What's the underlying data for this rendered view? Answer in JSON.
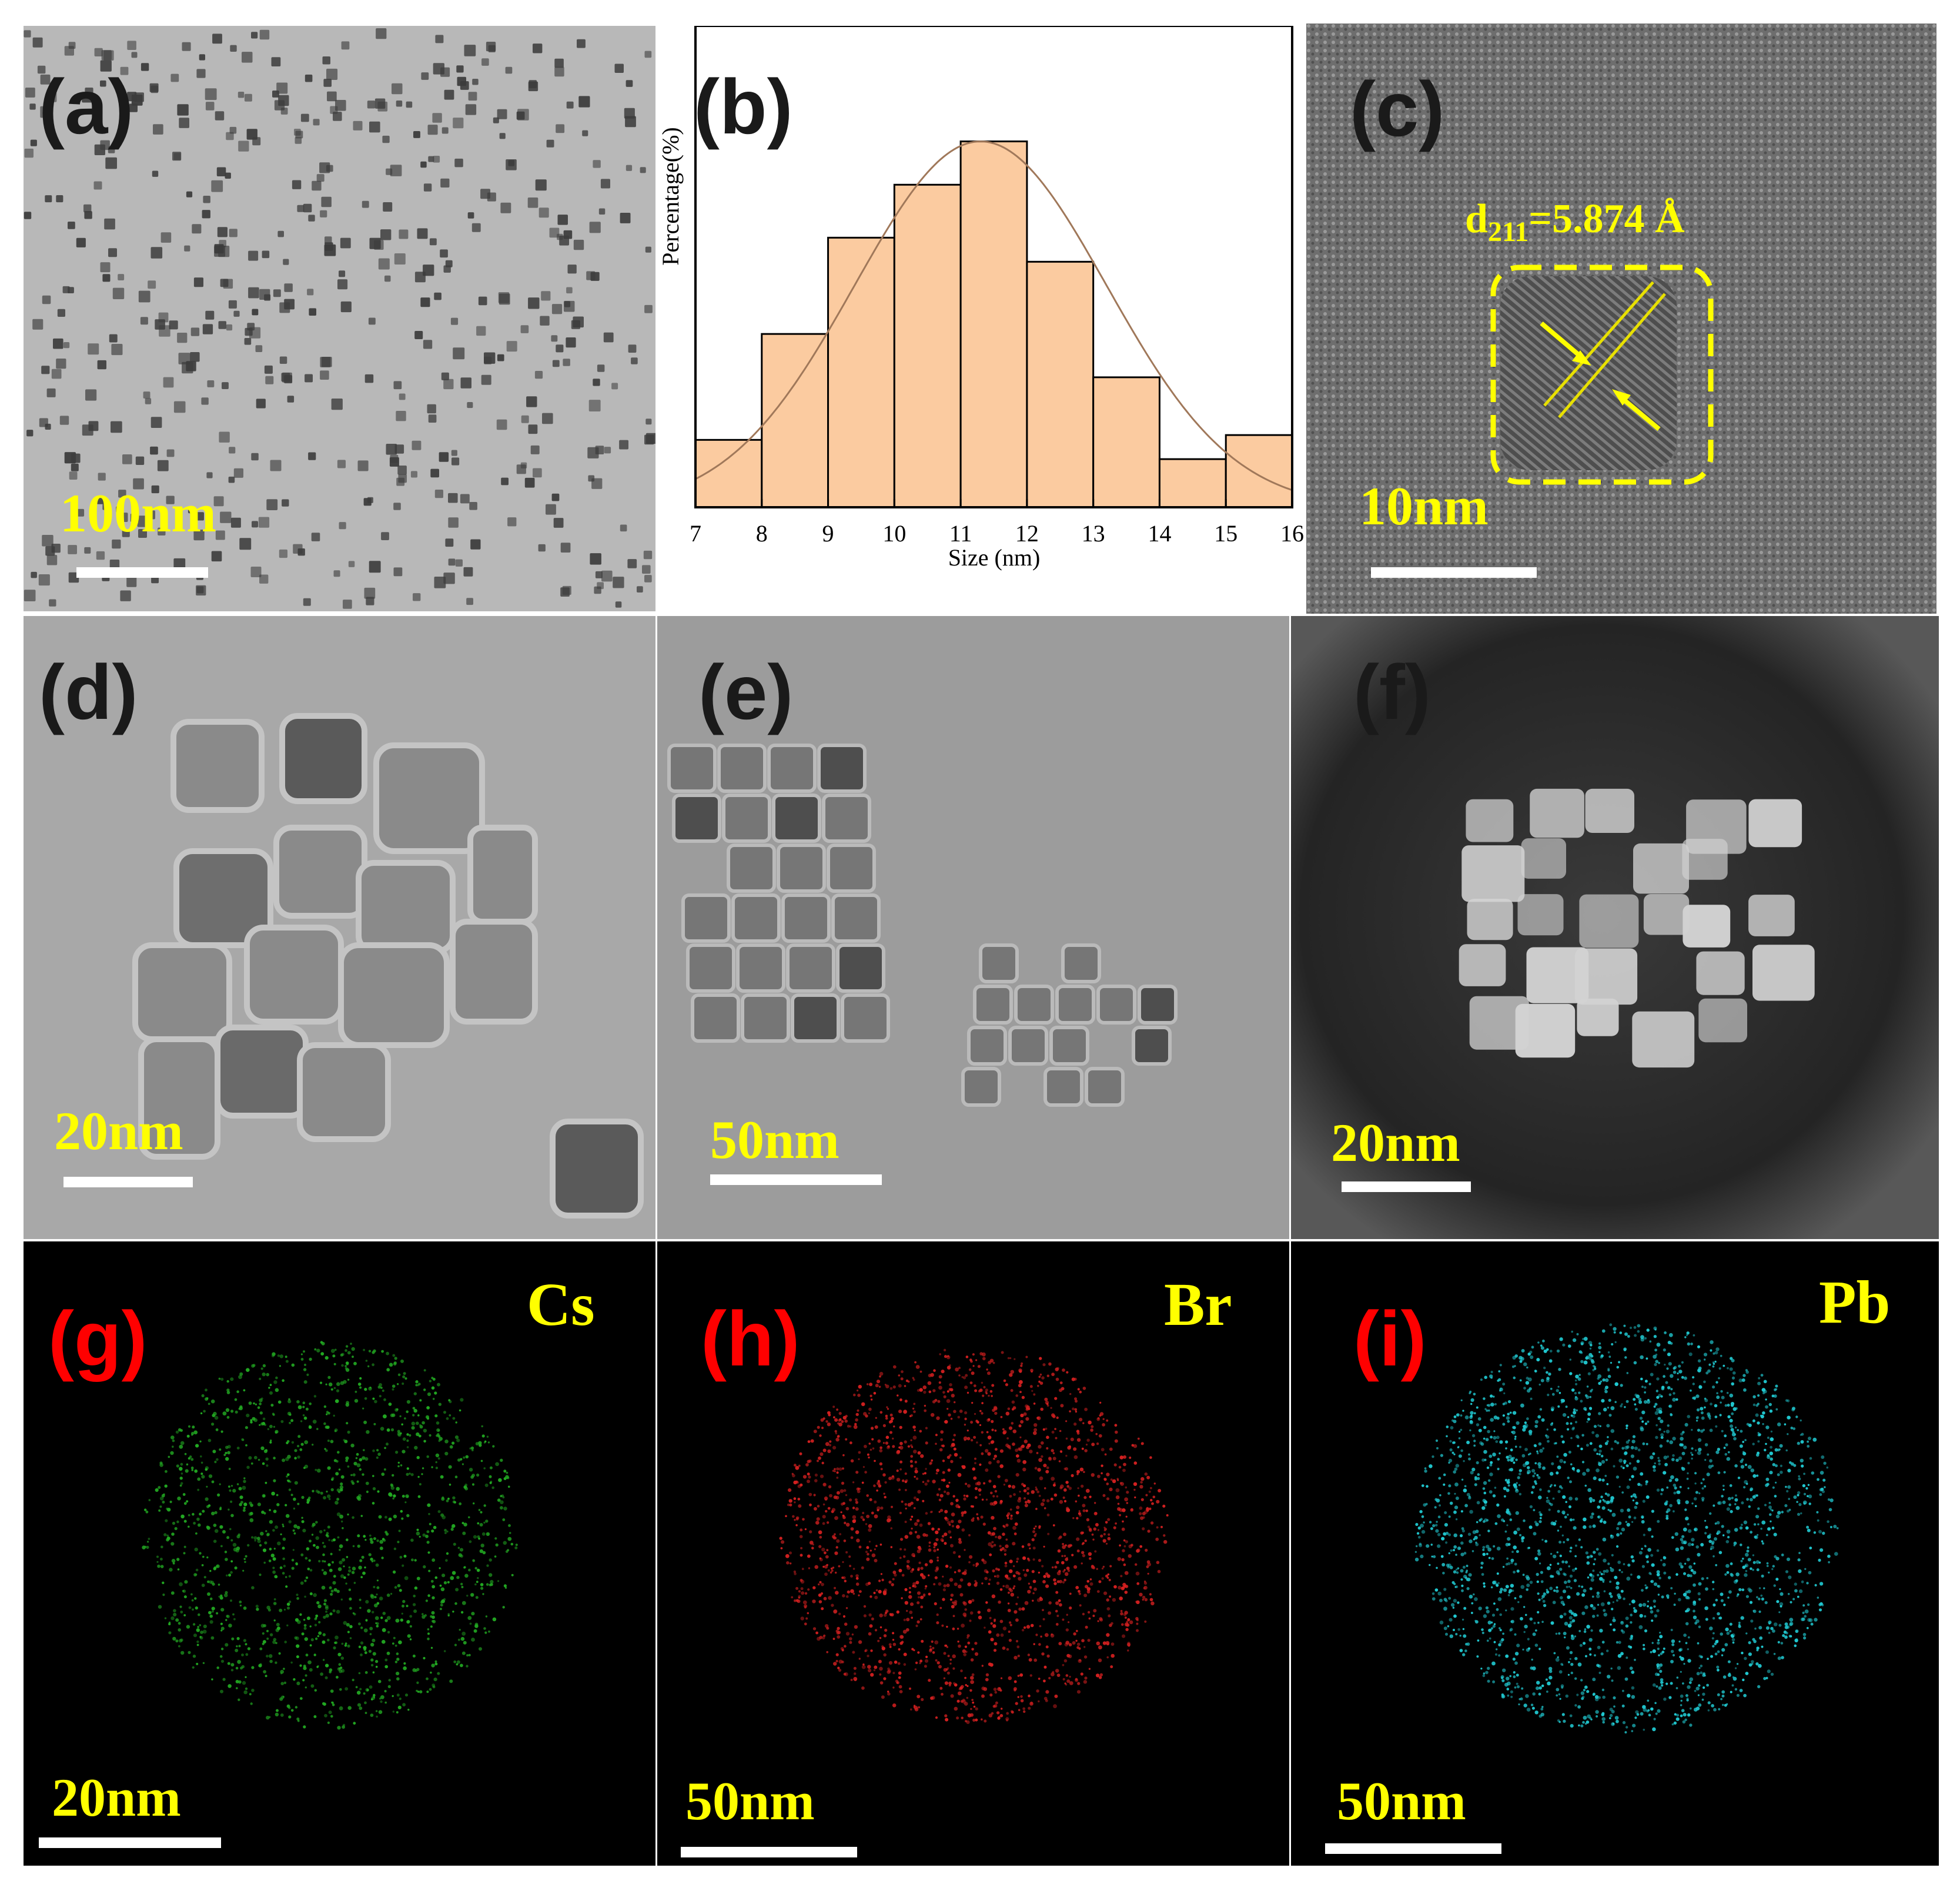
{
  "panels": {
    "a": {
      "label": "(a)",
      "scale": "100nm"
    },
    "b": {
      "label": "(b)"
    },
    "c": {
      "label": "(c)",
      "scale": "10nm",
      "d_spacing": {
        "symbol": "d",
        "index": "211",
        "value": "=5.874 Å"
      }
    },
    "d": {
      "label": "(d)",
      "scale": "20nm"
    },
    "e": {
      "label": "(e)",
      "scale": "50nm"
    },
    "f": {
      "label": "(f)",
      "scale": "20nm"
    },
    "g": {
      "label": "(g)",
      "element": "Cs",
      "scale": "20nm"
    },
    "h": {
      "label": "(h)",
      "element": "Br",
      "scale": "50nm"
    },
    "i": {
      "label": "(i)",
      "element": "Pb",
      "scale": "50nm"
    }
  },
  "colors": {
    "panel_label_dark": "#1a1a1a",
    "panel_label_red": "#ff0000",
    "annotation_yellow": "#ffff00",
    "hist_fill": "#fbcba0",
    "hist_edge": "#000000",
    "fit_curve": "#a0785a",
    "map_cs": "#22aa22",
    "map_br": "#d42020",
    "map_pb": "#20c8d0"
  },
  "chart_data": {
    "type": "bar",
    "title": "",
    "xlabel": "Size (nm)",
    "ylabel": "Percentage(%)",
    "xlim": [
      7,
      16
    ],
    "ylim": [
      0,
      100
    ],
    "x_ticks": [
      "7",
      "8",
      "9",
      "10",
      "11",
      "12",
      "13",
      "14",
      "15",
      "16"
    ],
    "bins": [
      [
        7,
        8
      ],
      [
        8,
        9
      ],
      [
        9,
        10
      ],
      [
        10,
        11
      ],
      [
        11,
        12
      ],
      [
        12,
        13
      ],
      [
        13,
        14
      ],
      [
        14,
        15
      ],
      [
        15,
        16
      ]
    ],
    "values": [
      14,
      36,
      56,
      67,
      76,
      51,
      27,
      10,
      15
    ],
    "fit": {
      "type": "gaussian",
      "mean": 11.3,
      "sigma": 1.9,
      "peak": 76
    },
    "y_ticks_shown": false,
    "grid": false,
    "legend": "none"
  }
}
